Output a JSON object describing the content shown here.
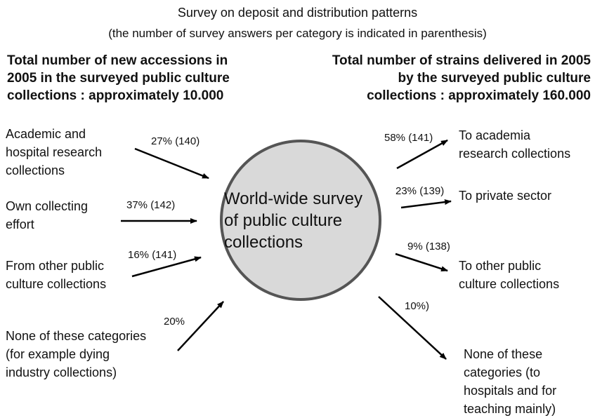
{
  "title": "Survey on deposit and distribution patterns",
  "subtitle": "(the number of survey answers per category is indicated in parenthesis)",
  "left_heading": [
    "Total number of new accessions in",
    "2005 in the surveyed public culture",
    "collections : approximately 10.000"
  ],
  "right_heading": [
    "Total number of strains delivered in 2005",
    "by the surveyed public culture",
    "collections : approximately 160.000"
  ],
  "center": [
    "World-wide survey",
    "of public culture",
    "collections"
  ],
  "inflows": [
    {
      "label": [
        "Academic and",
        "hospital research",
        "collections"
      ],
      "value": "27% (140)"
    },
    {
      "label": [
        "Own collecting",
        "effort"
      ],
      "value": "37% (142)"
    },
    {
      "label": [
        "From other public",
        "culture collections"
      ],
      "value": "16% (141)"
    },
    {
      "label": [
        "None of these categories",
        "(for example dying",
        "industry collections)"
      ],
      "value": "20%"
    }
  ],
  "outflows": [
    {
      "label": [
        "To academia",
        "research collections"
      ],
      "value": "58% (141)"
    },
    {
      "label": [
        "To private sector"
      ],
      "value": "23% (139)"
    },
    {
      "label": [
        "To other public",
        "culture collections"
      ],
      "value": "9% (138)"
    },
    {
      "label": [
        "None of these",
        "categories (to",
        "hospitals and for",
        "teaching mainly)"
      ],
      "value": "10%)"
    }
  ],
  "colors": {
    "circle_fill": "#d9d9d9",
    "circle_stroke": "#555555",
    "arrow": "#000000",
    "text": "#111111"
  }
}
